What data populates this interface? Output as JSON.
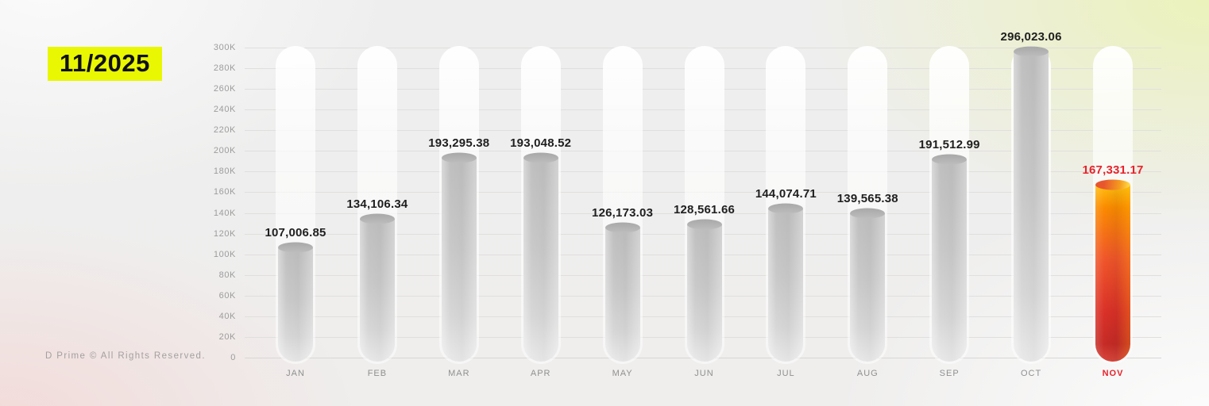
{
  "period_badge": {
    "label": "11/2025",
    "bg_color": "#e9f702",
    "text_color": "#101010"
  },
  "footer": {
    "copyright": "D Prime © All Rights Reserved."
  },
  "chart_data": {
    "type": "bar",
    "title": "",
    "xlabel": "",
    "ylabel": "",
    "categories": [
      "JAN",
      "FEB",
      "MAR",
      "APR",
      "MAY",
      "JUN",
      "JUL",
      "AUG",
      "SEP",
      "OCT",
      "NOV"
    ],
    "values": [
      107006.85,
      134106.34,
      193295.38,
      193048.52,
      126173.03,
      128561.66,
      144074.71,
      139565.38,
      191512.99,
      296023.06,
      167331.17
    ],
    "value_labels": [
      "107,006.85",
      "134,106.34",
      "193,295.38",
      "193,048.52",
      "126,173.03",
      "128,561.66",
      "144,074.71",
      "139,565.38",
      "191,512.99",
      "296,023.06",
      "167,331.17"
    ],
    "y_ticks": [
      "0",
      "20K",
      "40K",
      "60K",
      "80K",
      "100K",
      "120K",
      "140K",
      "160K",
      "180K",
      "200K",
      "220K",
      "240K",
      "260K",
      "280K",
      "300K"
    ],
    "ylim": [
      0,
      300000
    ],
    "grid": true,
    "legend": false,
    "highlight_index": 10,
    "highlight_color": "#e8232b",
    "bar_color": "#c9c9c9"
  }
}
